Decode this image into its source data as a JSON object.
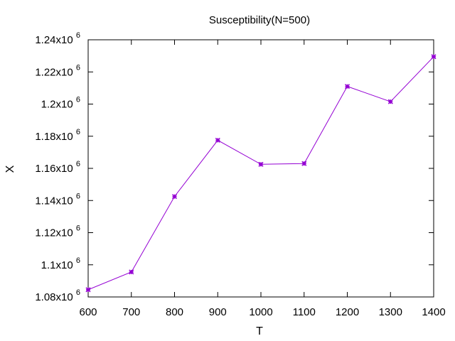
{
  "chart_data": {
    "type": "line",
    "title": "Susceptibility(N=500)",
    "xlabel": "T",
    "ylabel": "X",
    "xlim": [
      600,
      1400
    ],
    "ylim": [
      1.08,
      1.24
    ],
    "x_ticks": [
      600,
      700,
      800,
      900,
      1000,
      1100,
      1200,
      1300,
      1400
    ],
    "x_tick_labels": [
      "600",
      "700",
      "800",
      "900",
      "1000",
      "1100",
      "1200",
      "1300",
      "1400"
    ],
    "y_ticks": [
      1.08,
      1.1,
      1.12,
      1.14,
      1.16,
      1.18,
      1.2,
      1.22,
      1.24
    ],
    "y_tick_labels": [
      {
        "mantissa": "1.08x10",
        "exp": "6"
      },
      {
        "mantissa": "1.1x10",
        "exp": "6"
      },
      {
        "mantissa": "1.12x10",
        "exp": "6"
      },
      {
        "mantissa": "1.14x10",
        "exp": "6"
      },
      {
        "mantissa": "1.16x10",
        "exp": "6"
      },
      {
        "mantissa": "1.18x10",
        "exp": "6"
      },
      {
        "mantissa": "1.2x10",
        "exp": "6"
      },
      {
        "mantissa": "1.22x10",
        "exp": "6"
      },
      {
        "mantissa": "1.24x10",
        "exp": "6"
      }
    ],
    "y_scale_multiplier": 1000000,
    "grid": false,
    "series": [
      {
        "color": "#9400d3",
        "x": [
          600,
          700,
          800,
          900,
          1000,
          1100,
          1200,
          1300,
          1400
        ],
        "y": [
          1.0845,
          1.0955,
          1.1425,
          1.1775,
          1.1625,
          1.163,
          1.211,
          1.2015,
          1.2295
        ]
      }
    ]
  }
}
